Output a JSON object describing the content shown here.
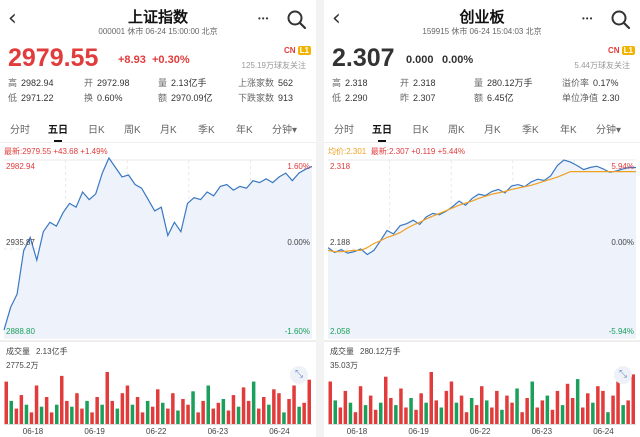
{
  "panels": [
    {
      "title": "上证指数",
      "subtitle": "000001  休市 06-24 15:00:00 北京",
      "price": "2979.55",
      "change": "+8.93",
      "change_pct": "+0.30%",
      "up": true,
      "cn_badge": "CN",
      "level_badge": "L1",
      "followers": "125.19万球友关注",
      "stats": [
        {
          "k": "高",
          "v": "2982.94"
        },
        {
          "k": "开",
          "v": "2972.98"
        },
        {
          "k": "量",
          "v": "2.13亿手"
        },
        {
          "k": "上涨家数",
          "v": "562"
        },
        {
          "k": "低",
          "v": "2971.22"
        },
        {
          "k": "换",
          "v": "0.60%"
        },
        {
          "k": "额",
          "v": "2970.09亿"
        },
        {
          "k": "下跌家数",
          "v": "913"
        }
      ],
      "tabs": [
        "分时",
        "五日",
        "日K",
        "周K",
        "月K",
        "季K",
        "年K",
        "分钟▾"
      ],
      "active_tab": "五日",
      "legend": [
        {
          "text": "最新:2979.55  +43.68  +1.49%",
          "color": "#e23b3b"
        }
      ],
      "axis": {
        "top_left": "2982.94",
        "top_right": "1.60%",
        "mid_left": "2935.87",
        "mid_right": "0.00%",
        "bot_left": "2888.80",
        "bot_right": "-1.60%"
      },
      "volume_label": "成交量",
      "volume_value": "2.13亿手",
      "volume_max": "2775.2万",
      "resize_icon": "expand-icon",
      "dates": [
        "06-18",
        "06-19",
        "06-22",
        "06-23",
        "06-24"
      ],
      "colors": {
        "up": "#e23b3b",
        "down": "#1aa05a",
        "line": "#3a78c2",
        "fill": "#edf2fb",
        "avg": "#f0a020"
      },
      "chart_data": {
        "type": "line",
        "xlabel": "",
        "ylabel": "",
        "ylim": [
          2888.8,
          2982.94
        ],
        "days": [
          "06-18",
          "06-19",
          "06-22",
          "06-23",
          "06-24"
        ],
        "price": [
          2893,
          2905,
          2912,
          2935,
          2942,
          2930,
          2945,
          2950,
          2948,
          2955,
          2960,
          2958,
          2966,
          2962,
          2965,
          2976,
          2984,
          2979,
          2974,
          2975,
          2970,
          2968,
          2962,
          2956,
          2958,
          2943,
          2950,
          2945,
          2960,
          2963,
          2962,
          2966,
          2964,
          2969,
          2970,
          2967,
          2969,
          2968,
          2972,
          2971,
          2973,
          2971,
          2974,
          2976,
          2972,
          2976,
          2978,
          2979.55
        ],
        "volume": [
          22,
          12,
          8,
          15,
          10,
          6,
          20,
          9,
          14,
          6,
          10,
          25,
          12,
          9,
          16,
          8,
          12,
          6,
          14,
          10,
          27,
          12,
          8,
          16,
          20,
          10,
          14,
          6,
          12,
          9,
          18,
          11,
          8,
          16,
          7,
          13,
          10,
          17,
          6,
          12,
          20,
          8,
          11,
          13,
          7,
          15,
          9,
          19,
          12,
          22,
          8,
          14,
          10,
          18,
          16,
          6,
          13,
          20,
          9,
          11,
          23
        ]
      }
    },
    {
      "title": "创业板",
      "subtitle": "159915  休市 06-24 15:04:03 北京",
      "price": "2.307",
      "change": "0.000",
      "change_pct": "0.00%",
      "up": false,
      "cn_badge": "CN",
      "level_badge": "L1",
      "followers": "5.44万球友关注",
      "stats": [
        {
          "k": "高",
          "v": "2.318"
        },
        {
          "k": "开",
          "v": "2.318"
        },
        {
          "k": "量",
          "v": "280.12万手"
        },
        {
          "k": "溢价率",
          "v": "0.17%"
        },
        {
          "k": "低",
          "v": "2.290"
        },
        {
          "k": "昨",
          "v": "2.307"
        },
        {
          "k": "额",
          "v": "6.45亿"
        },
        {
          "k": "单位净值",
          "v": "2.30"
        }
      ],
      "tabs": [
        "分时",
        "五日",
        "日K",
        "周K",
        "月K",
        "季K",
        "年K",
        "分钟▾"
      ],
      "active_tab": "五日",
      "legend": [
        {
          "text": "均价:2.301",
          "color": "#f0a020"
        },
        {
          "text": "最新:2.307  +0.119  +5.44%",
          "color": "#e23b3b"
        }
      ],
      "axis": {
        "top_left": "2.318",
        "top_right": "5.94%",
        "mid_left": "2.188",
        "mid_right": "0.00%",
        "bot_left": "2.058",
        "bot_right": "-5.94%"
      },
      "volume_label": "成交量",
      "volume_value": "280.12万手",
      "volume_max": "35.03万",
      "resize_icon": "expand-icon",
      "dates": [
        "06-18",
        "06-19",
        "06-22",
        "06-23",
        "06-24"
      ],
      "colors": {
        "up": "#e23b3b",
        "down": "#1aa05a",
        "line": "#3a78c2",
        "fill": "#edf2fb",
        "avg": "#f0a020"
      },
      "chart_data": {
        "type": "line",
        "xlabel": "",
        "ylabel": "",
        "ylim": [
          2.058,
          2.318
        ],
        "days": [
          "06-18",
          "06-19",
          "06-22",
          "06-23",
          "06-24"
        ],
        "price": [
          2.19,
          2.183,
          2.187,
          2.182,
          2.184,
          2.188,
          2.18,
          2.186,
          2.2,
          2.215,
          2.21,
          2.222,
          2.225,
          2.23,
          2.224,
          2.235,
          2.24,
          2.238,
          2.243,
          2.25,
          2.258,
          2.252,
          2.262,
          2.268,
          2.266,
          2.272,
          2.275,
          2.27,
          2.28,
          2.282,
          2.279,
          2.286,
          2.29,
          2.288,
          2.295,
          2.31,
          2.318,
          2.315,
          2.31,
          2.304,
          2.307,
          2.309,
          2.305,
          2.3,
          2.302,
          2.305,
          2.307,
          2.307
        ],
        "avg_price": [
          2.186,
          2.184,
          2.184,
          2.185,
          2.186,
          2.186,
          2.19,
          2.196,
          2.2,
          2.205,
          2.208,
          2.212,
          2.218,
          2.223,
          2.227,
          2.232,
          2.236,
          2.24,
          2.244,
          2.248,
          2.252,
          2.255,
          2.258,
          2.262,
          2.265,
          2.268,
          2.27,
          2.272,
          2.275,
          2.277,
          2.279,
          2.281,
          2.284,
          2.287,
          2.29,
          2.293,
          2.297,
          2.301,
          2.301,
          2.301,
          2.301,
          2.301,
          2.301,
          2.301,
          2.301,
          2.301,
          2.301,
          2.301
        ],
        "volume": [
          18,
          10,
          7,
          14,
          9,
          5,
          16,
          8,
          12,
          6,
          9,
          20,
          11,
          8,
          15,
          7,
          11,
          6,
          13,
          9,
          22,
          10,
          7,
          14,
          18,
          9,
          12,
          5,
          11,
          8,
          16,
          10,
          7,
          14,
          6,
          12,
          9,
          15,
          5,
          11,
          18,
          7,
          10,
          12,
          6,
          14,
          8,
          17,
          11,
          19,
          7,
          13,
          9,
          16,
          14,
          5,
          12,
          18,
          8,
          10,
          21
        ]
      }
    }
  ]
}
